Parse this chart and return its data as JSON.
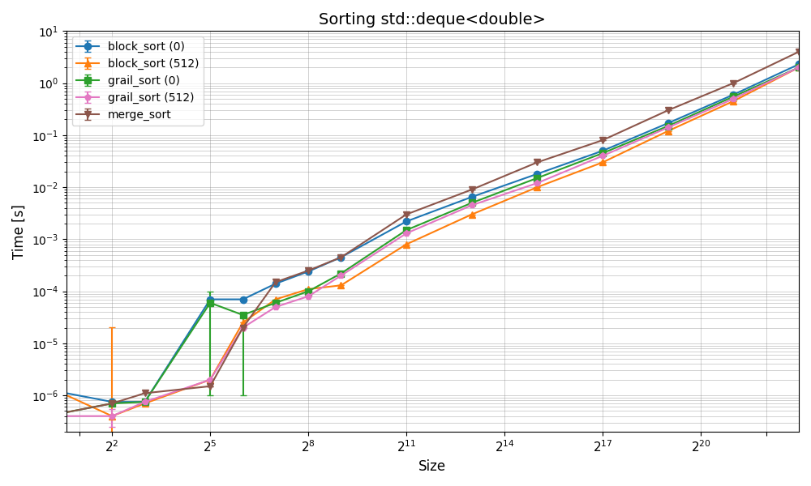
{
  "title": "Sorting std::deque<double>",
  "xlabel": "Size",
  "ylabel": "Time [s]",
  "series": [
    {
      "label": "block_sort (0)",
      "color": "#1f77b4",
      "marker": "o",
      "x": [
        1,
        4,
        8,
        32,
        64,
        128,
        256,
        512,
        2048,
        8192,
        32768,
        131072,
        524288,
        2097152,
        8388608
      ],
      "y": [
        1.3e-06,
        7.5e-07,
        7.5e-07,
        7e-05,
        7e-05,
        0.00014,
        0.00024,
        0.00045,
        0.0022,
        0.0065,
        0.018,
        0.05,
        0.17,
        0.6,
        2.3
      ],
      "yerr_lo": [
        0,
        0,
        0,
        0,
        0,
        0,
        0,
        0,
        0,
        0,
        0,
        0,
        0,
        0,
        0
      ],
      "yerr_hi": [
        0,
        0,
        0,
        0,
        0,
        0,
        0,
        0,
        0,
        0,
        0,
        0,
        0,
        0,
        0
      ]
    },
    {
      "label": "block_sort (512)",
      "color": "#ff7f0e",
      "marker": "^",
      "x": [
        1,
        4,
        8,
        32,
        64,
        128,
        256,
        512,
        2048,
        8192,
        32768,
        131072,
        524288,
        2097152,
        8388608
      ],
      "y": [
        1.5e-06,
        4e-07,
        7e-07,
        2e-06,
        2.5e-05,
        7e-05,
        0.00011,
        0.00013,
        0.0008,
        0.003,
        0.01,
        0.03,
        0.12,
        0.45,
        2.0
      ],
      "yerr_lo": [
        0,
        3e-07,
        0,
        0,
        0,
        0,
        0,
        0,
        0,
        0,
        0,
        0,
        0,
        0,
        0
      ],
      "yerr_hi": [
        0,
        2e-05,
        0,
        0,
        0,
        0,
        0,
        0,
        0,
        0,
        0,
        0,
        0,
        0,
        0
      ]
    },
    {
      "label": "grail_sort (0)",
      "color": "#2ca02c",
      "marker": "s",
      "x": [
        1,
        4,
        8,
        32,
        64,
        128,
        256,
        512,
        2048,
        8192,
        32768,
        131072,
        524288,
        2097152,
        8388608
      ],
      "y": [
        4e-07,
        7e-07,
        7.5e-07,
        6e-05,
        3.5e-05,
        6e-05,
        0.0001,
        0.00022,
        0.0015,
        0.005,
        0.015,
        0.045,
        0.15,
        0.55,
        2.0
      ],
      "yerr_lo": [
        0,
        0,
        0,
        5.9e-05,
        3.4e-05,
        0,
        0,
        0,
        0,
        0,
        0,
        0,
        0,
        0,
        0
      ],
      "yerr_hi": [
        0,
        0,
        0,
        4e-05,
        0,
        0,
        0,
        0,
        0,
        0,
        0,
        0,
        0,
        0,
        0
      ]
    },
    {
      "label": "grail_sort (512)",
      "color": "#e377c2",
      "marker": "p",
      "x": [
        1,
        4,
        8,
        32,
        64,
        128,
        256,
        512,
        2048,
        8192,
        32768,
        131072,
        524288,
        2097152,
        8388608
      ],
      "y": [
        4e-07,
        4e-07,
        7.5e-07,
        2e-06,
        2e-05,
        5e-05,
        8e-05,
        0.0002,
        0.0013,
        0.0045,
        0.012,
        0.04,
        0.14,
        0.5,
        2.0
      ],
      "yerr_lo": [
        0,
        1.5e-07,
        0,
        0,
        0,
        0,
        0,
        0,
        0,
        0,
        0,
        0,
        0,
        0,
        0
      ],
      "yerr_hi": [
        0,
        1.5e-07,
        0,
        0,
        0,
        0,
        0,
        0,
        0,
        0,
        0,
        0,
        0,
        0,
        0
      ]
    },
    {
      "label": "merge_sort",
      "color": "#8c564b",
      "marker": "v",
      "x": [
        1,
        4,
        8,
        32,
        64,
        128,
        256,
        512,
        2048,
        8192,
        32768,
        131072,
        524288,
        2097152,
        8388608
      ],
      "y": [
        4e-07,
        7e-07,
        1.1e-06,
        1.5e-06,
        2e-05,
        0.00015,
        0.00025,
        0.00045,
        0.003,
        0.009,
        0.03,
        0.08,
        0.3,
        1.0,
        4.0
      ],
      "yerr_lo": [
        0,
        0,
        0,
        0,
        0,
        0,
        0,
        0,
        0,
        0,
        0,
        0,
        0,
        0,
        0
      ],
      "yerr_hi": [
        0,
        0,
        0,
        0,
        0,
        0,
        0,
        0,
        0,
        0,
        0,
        0,
        0,
        0,
        0
      ]
    }
  ]
}
